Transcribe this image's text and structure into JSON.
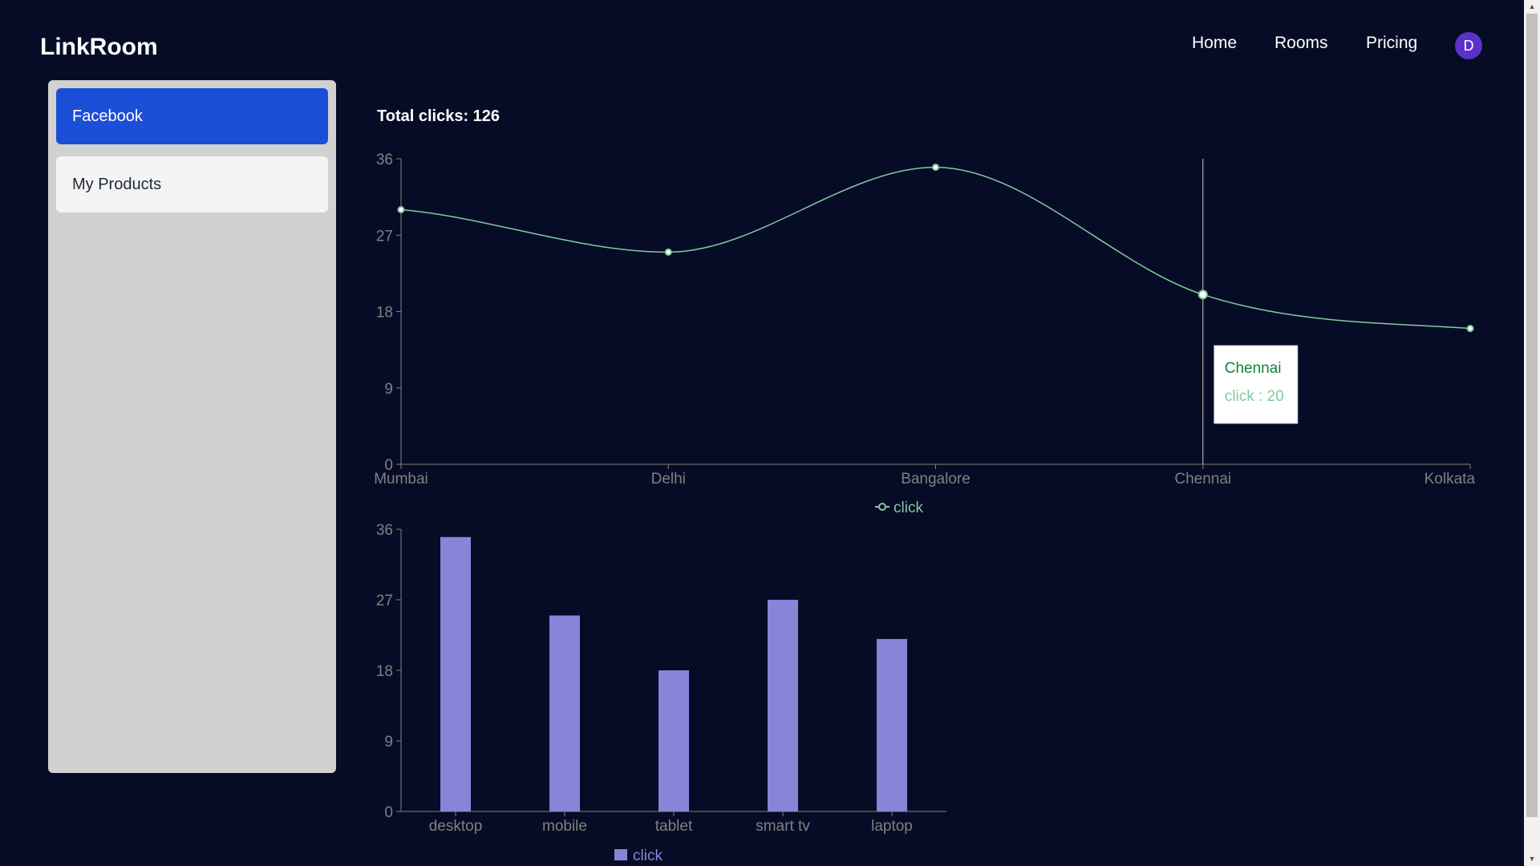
{
  "app": {
    "title": "LinkRoom"
  },
  "nav": {
    "home": "Home",
    "rooms": "Rooms",
    "pricing": "Pricing",
    "avatar_initial": "D"
  },
  "sidebar": {
    "items": [
      {
        "label": "Facebook",
        "active": true
      },
      {
        "label": "My Products",
        "active": false
      }
    ]
  },
  "stats": {
    "total_clicks_label": "Total clicks: 126"
  },
  "tooltip": {
    "title": "Chennai",
    "label": "click : 20"
  },
  "colors": {
    "line": "#82ca9d",
    "bar": "#8884d8",
    "accent": "#1d4ed8",
    "background": "#070c26"
  },
  "chart_data": [
    {
      "type": "line",
      "categories": [
        "Mumbai",
        "Delhi",
        "Bangalore",
        "Chennai",
        "Kolkata"
      ],
      "series": [
        {
          "name": "click",
          "values": [
            30,
            25,
            35,
            20,
            16
          ]
        }
      ],
      "ylim": [
        0,
        36
      ],
      "yticks": [
        0,
        9,
        18,
        27,
        36
      ],
      "legend": "bottom",
      "active_category": "Chennai"
    },
    {
      "type": "bar",
      "categories": [
        "desktop",
        "mobile",
        "tablet",
        "smart tv",
        "laptop"
      ],
      "series": [
        {
          "name": "click",
          "values": [
            35,
            25,
            18,
            27,
            22
          ]
        }
      ],
      "ylim": [
        0,
        36
      ],
      "yticks": [
        0,
        9,
        18,
        27,
        36
      ],
      "legend": "bottom"
    }
  ]
}
